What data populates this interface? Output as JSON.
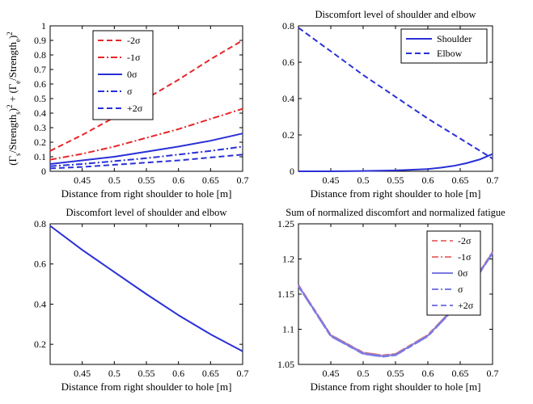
{
  "chart_data": [
    {
      "type": "line",
      "title": "",
      "xlabel": "Distance from right shoulder to hole [m]",
      "ylabel": "(Γs/Strength s)2 + (Γe/Strength e)2",
      "ylabel_parts": {
        "open1": "(Γ",
        "sub1": "s",
        "mid1": "/Strength",
        "sub2": "s",
        "close1": ")",
        "sup1": "2",
        "plus": " + (Γ",
        "sub3": "e",
        "mid2": "/Strength",
        "sub4": "e",
        "close2": ")",
        "sup2": "2"
      },
      "xlim": [
        0.4,
        0.7
      ],
      "ylim": [
        0,
        1
      ],
      "xticks": [
        "0.45",
        "0.5",
        "0.55",
        "0.6",
        "0.65",
        "0.7"
      ],
      "yticks": [
        "0",
        "0.1",
        "0.2",
        "0.3",
        "0.4",
        "0.5",
        "0.6",
        "0.7",
        "0.8",
        "0.9",
        "1"
      ],
      "legend_position": "top-left",
      "series": [
        {
          "name": "-2σ",
          "color": "#e8262a",
          "dash": "dashed",
          "x": [
            0.4,
            0.45,
            0.5,
            0.55,
            0.6,
            0.65,
            0.7
          ],
          "y": [
            0.14,
            0.25,
            0.37,
            0.5,
            0.63,
            0.77,
            0.9
          ]
        },
        {
          "name": "-1σ",
          "color": "#e8262a",
          "dash": "dashdot",
          "x": [
            0.4,
            0.45,
            0.5,
            0.55,
            0.6,
            0.65,
            0.7
          ],
          "y": [
            0.08,
            0.12,
            0.17,
            0.23,
            0.29,
            0.36,
            0.43
          ]
        },
        {
          "name": "0σ",
          "color": "#2a30d6",
          "dash": "solid",
          "x": [
            0.4,
            0.45,
            0.5,
            0.55,
            0.6,
            0.65,
            0.7
          ],
          "y": [
            0.05,
            0.075,
            0.1,
            0.135,
            0.17,
            0.21,
            0.26
          ]
        },
        {
          "name": "σ",
          "color": "#2a30d6",
          "dash": "dashdot",
          "x": [
            0.4,
            0.45,
            0.5,
            0.55,
            0.6,
            0.65,
            0.7
          ],
          "y": [
            0.035,
            0.05,
            0.07,
            0.09,
            0.115,
            0.14,
            0.17
          ]
        },
        {
          "name": "+2σ",
          "color": "#2a30d6",
          "dash": "dashed",
          "x": [
            0.4,
            0.45,
            0.5,
            0.55,
            0.6,
            0.65,
            0.7
          ],
          "y": [
            0.02,
            0.03,
            0.045,
            0.06,
            0.075,
            0.095,
            0.115
          ]
        }
      ]
    },
    {
      "type": "line",
      "title": "Discomfort level of shoulder and elbow",
      "xlabel": "Distance from right shoulder to hole [m]",
      "ylabel": "",
      "xlim": [
        0.4,
        0.7
      ],
      "ylim": [
        0,
        0.8
      ],
      "xticks": [
        "0.45",
        "0.5",
        "0.55",
        "0.6",
        "0.65",
        "0.7"
      ],
      "yticks": [
        "0",
        "0.2",
        "0.4",
        "0.6",
        "0.8"
      ],
      "legend_position": "top-right",
      "series": [
        {
          "name": "Shoulder",
          "color": "#2a30d6",
          "dash": "solid",
          "x": [
            0.4,
            0.45,
            0.5,
            0.55,
            0.6,
            0.62,
            0.64,
            0.66,
            0.68,
            0.7
          ],
          "y": [
            0.0,
            0.0,
            0.002,
            0.005,
            0.012,
            0.02,
            0.03,
            0.045,
            0.065,
            0.095
          ]
        },
        {
          "name": "Elbow",
          "color": "#2a30d6",
          "dash": "dashed",
          "x": [
            0.4,
            0.45,
            0.5,
            0.55,
            0.6,
            0.65,
            0.7
          ],
          "y": [
            0.79,
            0.66,
            0.53,
            0.41,
            0.29,
            0.18,
            0.07
          ]
        }
      ]
    },
    {
      "type": "line",
      "title": "Discomfort level of shoulder and elbow",
      "xlabel": "Distance from right shoulder to hole [m]",
      "ylabel": "",
      "xlim": [
        0.4,
        0.7
      ],
      "ylim": [
        0.1,
        0.8
      ],
      "xticks": [
        "0.45",
        "0.5",
        "0.55",
        "0.6",
        "0.65",
        "0.7"
      ],
      "yticks": [
        "0.2",
        "0.4",
        "0.6",
        "0.8"
      ],
      "legend_position": "none",
      "series": [
        {
          "color": "#2a30d6",
          "dash": "solid",
          "x": [
            0.4,
            0.45,
            0.5,
            0.55,
            0.6,
            0.65,
            0.7
          ],
          "y": [
            0.79,
            0.67,
            0.56,
            0.45,
            0.345,
            0.25,
            0.165
          ]
        }
      ]
    },
    {
      "type": "line",
      "title": "Sum of normalized discomfort and normalized fatigue",
      "xlabel": "Distance from right shoulder to hole [m]",
      "ylabel": "",
      "xlim": [
        0.4,
        0.7
      ],
      "ylim": [
        1.05,
        1.25
      ],
      "xticks": [
        "0.45",
        "0.5",
        "0.55",
        "0.6",
        "0.65",
        "0.7"
      ],
      "yticks": [
        "1.05",
        "1.1",
        "1.15",
        "1.2",
        "1.25"
      ],
      "legend_position": "top-right",
      "series": [
        {
          "name": "-2σ",
          "color": "#e87878",
          "dash": "dashed",
          "x": [
            0.4,
            0.45,
            0.5,
            0.53,
            0.55,
            0.6,
            0.65,
            0.7
          ],
          "y": [
            1.163,
            1.092,
            1.067,
            1.063,
            1.065,
            1.092,
            1.14,
            1.21
          ]
        },
        {
          "name": "-1σ",
          "color": "#e87878",
          "dash": "dashdot",
          "x": [
            0.4,
            0.45,
            0.5,
            0.53,
            0.55,
            0.6,
            0.65,
            0.7
          ],
          "y": [
            1.163,
            1.092,
            1.067,
            1.063,
            1.065,
            1.092,
            1.14,
            1.21
          ]
        },
        {
          "name": "0σ",
          "color": "#7a7ae0",
          "dash": "solid",
          "x": [
            0.4,
            0.45,
            0.5,
            0.53,
            0.55,
            0.6,
            0.65,
            0.7
          ],
          "y": [
            1.162,
            1.091,
            1.066,
            1.062,
            1.064,
            1.091,
            1.139,
            1.209
          ]
        },
        {
          "name": "σ",
          "color": "#7a7ae0",
          "dash": "dashdot",
          "x": [
            0.4,
            0.45,
            0.5,
            0.53,
            0.55,
            0.6,
            0.65,
            0.7
          ],
          "y": [
            1.161,
            1.09,
            1.065,
            1.061,
            1.063,
            1.09,
            1.138,
            1.208
          ]
        },
        {
          "name": "+2σ",
          "color": "#7a7ae0",
          "dash": "dashed",
          "x": [
            0.4,
            0.45,
            0.5,
            0.53,
            0.55,
            0.6,
            0.65,
            0.7
          ],
          "y": [
            1.161,
            1.09,
            1.065,
            1.061,
            1.063,
            1.09,
            1.138,
            1.208
          ]
        }
      ]
    }
  ]
}
